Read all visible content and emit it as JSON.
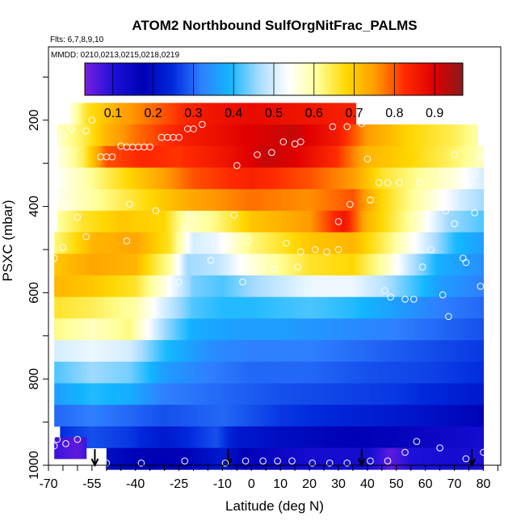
{
  "chart_data": {
    "type": "heatmap",
    "title": "ATOM2 Northbound SulfOrgNitFrac_PALMS",
    "flights_note": "Flts: 6,7,8,9,10",
    "dates_note": "MMDD: 0210,0213,0215,0218,0219",
    "xlabel": "Latitude (deg N)",
    "ylabel": "PSXC (mbar)",
    "x_ticks": [
      -70,
      -55,
      -40,
      -25,
      -10,
      0,
      10,
      20,
      30,
      40,
      50,
      60,
      70,
      80
    ],
    "y_ticks": [
      200,
      400,
      600,
      800,
      1000
    ],
    "xlim": [
      -70,
      86
    ],
    "ylim": [
      1000,
      30
    ],
    "y_reversed": true,
    "colorbar": {
      "ticks": [
        0.1,
        0.2,
        0.3,
        0.4,
        0.5,
        0.6,
        0.7,
        0.8,
        0.9
      ],
      "range": [
        0.03,
        0.97
      ],
      "colors": [
        "#7a1ee0",
        "#1c10d8",
        "#0000b4",
        "#0028dc",
        "#2f7fff",
        "#12b6ff",
        "#a8dcff",
        "#ffffff",
        "#ffff99",
        "#ffd700",
        "#ff9a00",
        "#ff2a00",
        "#e00000",
        "#8b1a1a"
      ]
    },
    "pressure_levels": [
      185,
      235,
      285,
      335,
      385,
      435,
      485,
      535,
      585,
      635,
      685,
      735,
      785,
      835,
      885,
      935,
      985
    ],
    "profile_latitudes": [
      -54,
      -8,
      38,
      76
    ],
    "points": [
      {
        "x": -65,
        "y": 235
      },
      {
        "x": -62,
        "y": 220
      },
      {
        "x": -57,
        "y": 225
      },
      {
        "x": -55,
        "y": 200
      },
      {
        "x": -52,
        "y": 285
      },
      {
        "x": -50,
        "y": 285
      },
      {
        "x": -48,
        "y": 285
      },
      {
        "x": -45,
        "y": 260
      },
      {
        "x": -43,
        "y": 262
      },
      {
        "x": -41,
        "y": 262
      },
      {
        "x": -39,
        "y": 262
      },
      {
        "x": -37,
        "y": 262
      },
      {
        "x": -35,
        "y": 262
      },
      {
        "x": -31,
        "y": 240
      },
      {
        "x": -29,
        "y": 240
      },
      {
        "x": -27,
        "y": 240
      },
      {
        "x": -25,
        "y": 240
      },
      {
        "x": -22,
        "y": 220
      },
      {
        "x": -20,
        "y": 220
      },
      {
        "x": -17,
        "y": 210
      },
      {
        "x": -5,
        "y": 305
      },
      {
        "x": 2,
        "y": 280
      },
      {
        "x": 7,
        "y": 275
      },
      {
        "x": 11,
        "y": 250
      },
      {
        "x": 15,
        "y": 255
      },
      {
        "x": 17,
        "y": 250
      },
      {
        "x": 28,
        "y": 215
      },
      {
        "x": 33,
        "y": 215
      },
      {
        "x": 38,
        "y": 208
      },
      {
        "x": 40,
        "y": 290
      },
      {
        "x": 44,
        "y": 345
      },
      {
        "x": 47,
        "y": 345
      },
      {
        "x": 51,
        "y": 345
      },
      {
        "x": 58,
        "y": 345
      },
      {
        "x": 70,
        "y": 280
      },
      {
        "x": 79,
        "y": 285
      },
      {
        "x": -67,
        "y": 250
      },
      {
        "x": -66,
        "y": 375
      },
      {
        "x": -63,
        "y": 400
      },
      {
        "x": -60,
        "y": 425
      },
      {
        "x": -57,
        "y": 470
      },
      {
        "x": -65,
        "y": 495
      },
      {
        "x": -68,
        "y": 520
      },
      {
        "x": -43,
        "y": 480
      },
      {
        "x": -42,
        "y": 395
      },
      {
        "x": -33,
        "y": 410
      },
      {
        "x": -23,
        "y": 455
      },
      {
        "x": -25,
        "y": 575
      },
      {
        "x": -14,
        "y": 525
      },
      {
        "x": -7,
        "y": 485
      },
      {
        "x": -6,
        "y": 420
      },
      {
        "x": -1,
        "y": 480
      },
      {
        "x": 1,
        "y": 550
      },
      {
        "x": 8,
        "y": 545
      },
      {
        "x": 12,
        "y": 485
      },
      {
        "x": 16,
        "y": 540
      },
      {
        "x": 17,
        "y": 505
      },
      {
        "x": 22,
        "y": 500
      },
      {
        "x": 26,
        "y": 505
      },
      {
        "x": 30,
        "y": 500
      },
      {
        "x": 30,
        "y": 435
      },
      {
        "x": 34,
        "y": 395
      },
      {
        "x": 41,
        "y": 385
      },
      {
        "x": 46,
        "y": 595
      },
      {
        "x": 48,
        "y": 610
      },
      {
        "x": 51,
        "y": 540
      },
      {
        "x": 53,
        "y": 615
      },
      {
        "x": 56,
        "y": 615
      },
      {
        "x": 59,
        "y": 540
      },
      {
        "x": 62,
        "y": 500
      },
      {
        "x": 66,
        "y": 605
      },
      {
        "x": 67,
        "y": 410
      },
      {
        "x": 68,
        "y": 655
      },
      {
        "x": 70,
        "y": 440
      },
      {
        "x": 73,
        "y": 520
      },
      {
        "x": 74,
        "y": 530
      },
      {
        "x": 77,
        "y": 415
      },
      {
        "x": 79,
        "y": 585
      },
      {
        "x": 77,
        "y": 325
      },
      {
        "x": -3,
        "y": 575
      },
      {
        "x": -67,
        "y": 940
      },
      {
        "x": -64,
        "y": 950
      },
      {
        "x": -60,
        "y": 940
      },
      {
        "x": -50,
        "y": 995
      },
      {
        "x": -38,
        "y": 995
      },
      {
        "x": -23,
        "y": 990
      },
      {
        "x": -9,
        "y": 995
      },
      {
        "x": -2,
        "y": 990
      },
      {
        "x": 4,
        "y": 990
      },
      {
        "x": 9,
        "y": 990
      },
      {
        "x": 14,
        "y": 990
      },
      {
        "x": 21,
        "y": 995
      },
      {
        "x": 27,
        "y": 995
      },
      {
        "x": 33,
        "y": 995
      },
      {
        "x": 41,
        "y": 990
      },
      {
        "x": 47,
        "y": 990
      },
      {
        "x": 53,
        "y": 970
      },
      {
        "x": 57,
        "y": 945
      },
      {
        "x": 65,
        "y": 960
      },
      {
        "x": 74,
        "y": 985
      },
      {
        "x": 80,
        "y": 970
      },
      {
        "x": -68,
        "y": 955
      }
    ]
  }
}
